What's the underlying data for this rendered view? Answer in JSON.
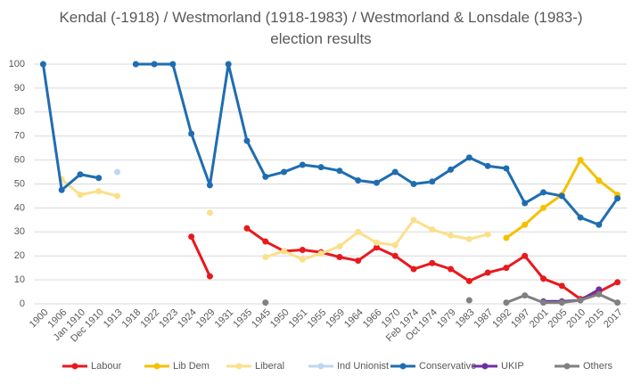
{
  "chart_data": {
    "type": "line",
    "title": "Kendal (-1918) / Westmorland (1918-1983) / Westmorland & Lonsdale (1983-) election results",
    "categories": [
      "1900",
      "1906",
      "Jan 1910",
      "Dec 1910",
      "1913",
      "1918",
      "1922",
      "1923",
      "1924",
      "1929",
      "1931",
      "1935",
      "1945",
      "1950",
      "1951",
      "1955",
      "1959",
      "1964",
      "1966",
      "1970",
      "Feb 1974",
      "Oct 1974",
      "1979",
      "1983",
      "1987",
      "1992",
      "1997",
      "2001",
      "2005",
      "2010",
      "2015",
      "2017"
    ],
    "series": [
      {
        "name": "Labour",
        "color": "#e8191e",
        "values": [
          null,
          null,
          null,
          null,
          null,
          null,
          null,
          null,
          28,
          11.5,
          null,
          31.5,
          26,
          22,
          22.5,
          21.5,
          19.5,
          18,
          23.5,
          20,
          14.5,
          17,
          14.5,
          9.5,
          13,
          15,
          20,
          10.5,
          7.5,
          2,
          5,
          9
        ]
      },
      {
        "name": "Lib Dem",
        "color": "#f5c000",
        "values": [
          null,
          null,
          null,
          null,
          null,
          null,
          null,
          null,
          null,
          null,
          null,
          null,
          null,
          null,
          null,
          null,
          null,
          null,
          null,
          null,
          null,
          null,
          null,
          null,
          null,
          27.5,
          33,
          40,
          45.5,
          60,
          51.5,
          45.5
        ]
      },
      {
        "name": "Liberal",
        "color": "#fbe08a",
        "values": [
          null,
          52,
          45.5,
          47,
          45,
          null,
          null,
          null,
          null,
          38,
          null,
          null,
          19.5,
          22,
          18.5,
          21,
          24,
          30,
          25.5,
          24.5,
          35,
          31,
          28.5,
          27,
          29,
          null,
          null,
          null,
          null,
          null,
          null,
          null
        ]
      },
      {
        "name": "Ind Unionist",
        "color": "#bdd7ee",
        "values": [
          null,
          null,
          null,
          null,
          55,
          null,
          null,
          null,
          null,
          null,
          null,
          null,
          null,
          null,
          null,
          null,
          null,
          null,
          null,
          null,
          null,
          null,
          null,
          null,
          null,
          null,
          null,
          null,
          null,
          null,
          null,
          null
        ]
      },
      {
        "name": "Conservative",
        "color": "#1f6db1",
        "values": [
          100,
          47.5,
          54,
          52.5,
          null,
          100,
          100,
          100,
          71,
          49.5,
          100,
          68,
          53,
          55,
          58,
          57,
          55.5,
          51.5,
          50.5,
          55,
          50,
          51,
          56,
          61,
          57.5,
          56.5,
          42,
          46.5,
          45,
          36,
          33,
          44
        ]
      },
      {
        "name": "UKIP",
        "color": "#7030a0",
        "values": [
          null,
          null,
          null,
          null,
          null,
          null,
          null,
          null,
          null,
          null,
          null,
          null,
          null,
          null,
          null,
          null,
          null,
          null,
          null,
          null,
          null,
          null,
          null,
          null,
          null,
          null,
          null,
          1,
          1,
          1.5,
          6,
          null
        ]
      },
      {
        "name": "Others",
        "color": "#808080",
        "values": [
          null,
          null,
          null,
          null,
          null,
          null,
          null,
          null,
          null,
          null,
          null,
          null,
          0.5,
          null,
          null,
          null,
          null,
          null,
          null,
          null,
          null,
          null,
          null,
          1.5,
          null,
          0.5,
          3.5,
          0.5,
          0.5,
          1.5,
          4,
          0.5
        ]
      }
    ],
    "ylim": [
      0,
      100
    ],
    "yticks": [
      0,
      10,
      20,
      30,
      40,
      50,
      60,
      70,
      80,
      90,
      100
    ],
    "grid": true,
    "legend": "bottom"
  }
}
